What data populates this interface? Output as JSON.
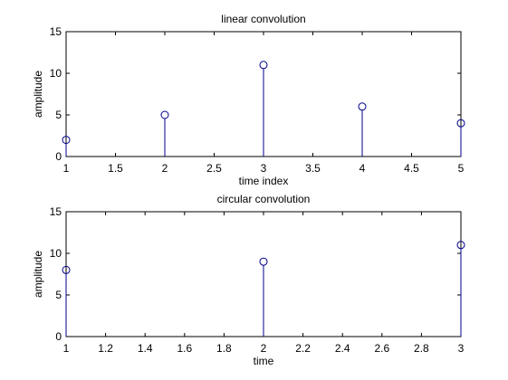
{
  "chart_data": [
    {
      "type": "stem",
      "title": "linear convolution",
      "xlabel": "time index",
      "ylabel": "amplitude",
      "x": [
        1,
        2,
        3,
        4,
        5
      ],
      "y": [
        2,
        5,
        11,
        6,
        4
      ],
      "xlim": [
        1,
        5
      ],
      "ylim": [
        0,
        15
      ],
      "xticks": [
        1,
        1.5,
        2,
        2.5,
        3,
        3.5,
        4,
        4.5,
        5
      ],
      "xtick_labels": [
        "1",
        "1.5",
        "2",
        "2.5",
        "3",
        "3.5",
        "4",
        "4.5",
        "5"
      ],
      "yticks": [
        0,
        5,
        10,
        15
      ],
      "ytick_labels": [
        "0",
        "5",
        "10",
        "15"
      ],
      "grid": false,
      "color": "#00008b"
    },
    {
      "type": "stem",
      "title": "circular convolution",
      "xlabel": "time",
      "ylabel": "amplitude",
      "x": [
        1,
        2,
        3
      ],
      "y": [
        8,
        9,
        11
      ],
      "xlim": [
        1,
        3
      ],
      "ylim": [
        0,
        15
      ],
      "xticks": [
        1,
        1.2,
        1.4,
        1.6,
        1.8,
        2,
        2.2,
        2.4,
        2.6,
        2.8,
        3
      ],
      "xtick_labels": [
        "1",
        "1.2",
        "1.4",
        "1.6",
        "1.8",
        "2",
        "2.2",
        "2.4",
        "2.6",
        "2.8",
        "3"
      ],
      "yticks": [
        0,
        5,
        10,
        15
      ],
      "ytick_labels": [
        "0",
        "5",
        "10",
        "15"
      ],
      "grid": false,
      "color": "#00008b"
    }
  ]
}
